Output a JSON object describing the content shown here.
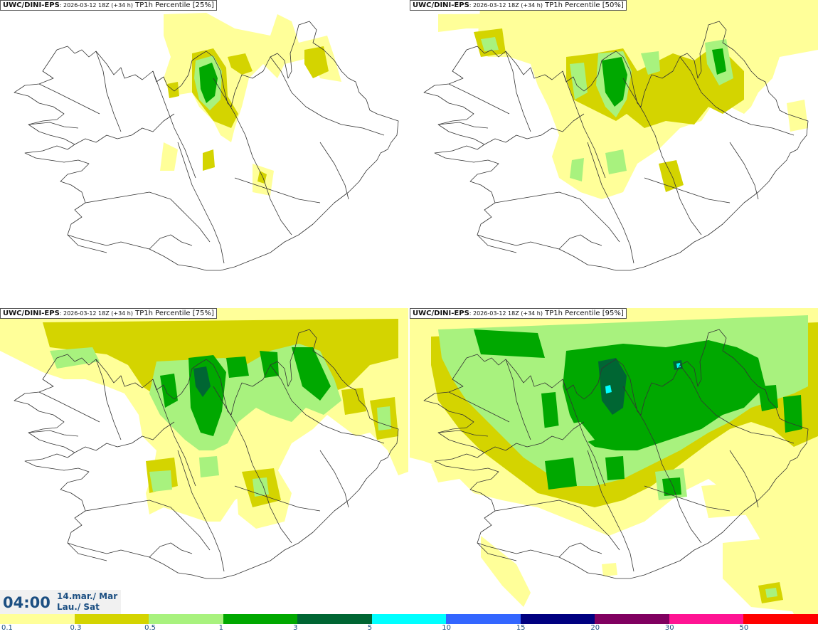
{
  "panels": [
    {
      "model": "UWC/DINI-EPS",
      "run": ": 2026-03-12 18Z (+34 h)",
      "field": " TP1h Percentile [25%]"
    },
    {
      "model": "UWC/DINI-EPS",
      "run": ": 2026-03-12 18Z (+34 h)",
      "field": " TP1h Percentile [50%]"
    },
    {
      "model": "UWC/DINI-EPS",
      "run": ": 2026-03-12 18Z (+34 h)",
      "field": " TP1h Percentile [75%]"
    },
    {
      "model": "UWC/DINI-EPS",
      "run": ": 2026-03-12 18Z (+34 h)",
      "field": " TP1h Percentile [95%]"
    }
  ],
  "valid_time": {
    "time": "04:00",
    "date_line1": "14.mar./ Mar",
    "date_line2": "Lau./ Sat"
  },
  "colorbar": {
    "colors": [
      "#ffff99",
      "#d4d400",
      "#a8f27e",
      "#00a800",
      "#006633",
      "#00ffff",
      "#3366ff",
      "#000080",
      "#800060",
      "#ff1493",
      "#ff0000"
    ],
    "labels": [
      "0.1",
      "0.3",
      "0.5",
      "1",
      "3",
      "5",
      "10",
      "15",
      "20",
      "30",
      "50"
    ]
  }
}
